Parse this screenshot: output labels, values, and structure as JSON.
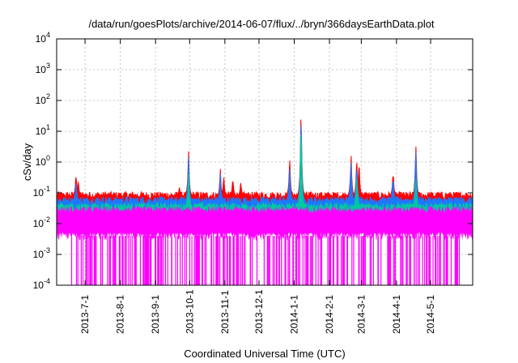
{
  "chart_data": {
    "type": "line",
    "title": "/data/run/goesPlots/archive/2014-06-07/flux/../bryn/366daysEarthData.plot",
    "xlabel": "Coordinated Universal Time (UTC)",
    "ylabel": "cSv/day",
    "y_scale": "log",
    "ylim": [
      0.0001,
      10000
    ],
    "xlim": [
      "2013-06-06",
      "2014-06-07"
    ],
    "grid": true,
    "legend": "none",
    "y_ticks": [
      {
        "value": 0.0001,
        "base": "10",
        "exp": "-4"
      },
      {
        "value": 0.001,
        "base": "10",
        "exp": "-3"
      },
      {
        "value": 0.01,
        "base": "10",
        "exp": "-2"
      },
      {
        "value": 0.1,
        "base": "10",
        "exp": "-1"
      },
      {
        "value": 1,
        "base": "10",
        "exp": "0"
      },
      {
        "value": 10,
        "base": "10",
        "exp": "1"
      },
      {
        "value": 100,
        "base": "10",
        "exp": "2"
      },
      {
        "value": 1000,
        "base": "10",
        "exp": "3"
      },
      {
        "value": 10000,
        "base": "10",
        "exp": "4"
      }
    ],
    "x_ticks": [
      "2013-7-1",
      "2013-8-1",
      "2013-9-1",
      "2013-10-1",
      "2013-11-1",
      "2013-12-1",
      "2014-1-1",
      "2014-2-1",
      "2014-3-1",
      "2014-4-1",
      "2014-5-1"
    ],
    "series": [
      {
        "color": "#ff0000",
        "baseline": 0.08,
        "peaks": [
          {
            "x": "2013-06-23",
            "y": 0.5
          },
          {
            "x": "2013-06-25",
            "y": 0.3
          },
          {
            "x": "2013-09-22",
            "y": 0.16
          },
          {
            "x": "2013-09-30",
            "y": 3.0
          },
          {
            "x": "2013-10-28",
            "y": 0.7
          },
          {
            "x": "2013-10-31",
            "y": 0.4
          },
          {
            "x": "2013-11-08",
            "y": 0.35
          },
          {
            "x": "2013-11-15",
            "y": 0.25
          },
          {
            "x": "2013-12-28",
            "y": 2.0
          },
          {
            "x": "2014-01-07",
            "y": 130
          },
          {
            "x": "2014-02-20",
            "y": 2.5
          },
          {
            "x": "2014-02-25",
            "y": 2.0
          },
          {
            "x": "2014-02-27",
            "y": 1.5
          },
          {
            "x": "2014-03-29",
            "y": 0.6
          },
          {
            "x": "2014-04-18",
            "y": 6.0
          }
        ]
      },
      {
        "color": "#1e78ff",
        "baseline": 0.055,
        "peaks": [
          {
            "x": "2013-06-23",
            "y": 0.3
          },
          {
            "x": "2013-09-30",
            "y": 2.0
          },
          {
            "x": "2013-10-28",
            "y": 0.5
          },
          {
            "x": "2013-12-28",
            "y": 1.0
          },
          {
            "x": "2014-01-07",
            "y": 80
          },
          {
            "x": "2014-02-20",
            "y": 1.5
          },
          {
            "x": "2014-02-25",
            "y": 1.2
          },
          {
            "x": "2014-03-29",
            "y": 0.4
          },
          {
            "x": "2014-04-18",
            "y": 4.0
          }
        ]
      },
      {
        "color": "#00c8a0",
        "baseline": 0.035,
        "peaks": [
          {
            "x": "2013-09-30",
            "y": 0.5
          },
          {
            "x": "2014-01-07",
            "y": 40
          },
          {
            "x": "2014-02-25",
            "y": 0.6
          },
          {
            "x": "2014-04-18",
            "y": 0.4
          }
        ]
      },
      {
        "color": "#ff00ff",
        "band": [
          0.004,
          0.03
        ],
        "dropouts_to": 0.0001
      }
    ]
  }
}
